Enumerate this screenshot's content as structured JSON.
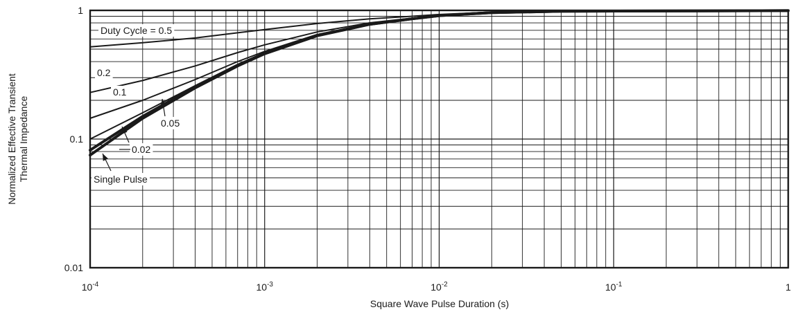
{
  "chart_data": {
    "type": "line",
    "title": "",
    "xlabel": "Square Wave Pulse Duration (s)",
    "ylabel": [
      "Normalized Effective Transient",
      "Thermal Impedance"
    ],
    "x_scale": "log",
    "y_scale": "log",
    "xlim": [
      0.0001,
      1
    ],
    "ylim": [
      0.01,
      1
    ],
    "grid": true,
    "x_ticks": [
      {
        "base": "10",
        "exp": "-4",
        "value": 0.0001
      },
      {
        "base": "10",
        "exp": "-3",
        "value": 0.001
      },
      {
        "base": "10",
        "exp": "-2",
        "value": 0.01
      },
      {
        "base": "10",
        "exp": "-1",
        "value": 0.1
      },
      {
        "base": "1",
        "exp": "",
        "value": 1
      }
    ],
    "y_ticks": [
      {
        "label": "0.01",
        "value": 0.01
      },
      {
        "label": "0.1",
        "value": 0.1
      },
      {
        "label": "1",
        "value": 1
      }
    ],
    "series": [
      {
        "name": "Duty Cycle = 0.5",
        "x": [
          0.0001,
          0.0002,
          0.0004,
          0.0007,
          0.001,
          0.002,
          0.004,
          0.007,
          0.01,
          0.02,
          0.05,
          1
        ],
        "y": [
          0.52,
          0.56,
          0.61,
          0.67,
          0.71,
          0.79,
          0.86,
          0.9,
          0.93,
          0.97,
          0.985,
          0.995
        ]
      },
      {
        "name": "0.2",
        "x": [
          0.0001,
          0.0002,
          0.0004,
          0.0007,
          0.001,
          0.002,
          0.004,
          0.007,
          0.01,
          0.02,
          0.05,
          1
        ],
        "y": [
          0.23,
          0.285,
          0.37,
          0.47,
          0.54,
          0.68,
          0.8,
          0.87,
          0.91,
          0.96,
          0.985,
          0.995
        ]
      },
      {
        "name": "0.1",
        "x": [
          0.0001,
          0.0002,
          0.0004,
          0.0007,
          0.001,
          0.002,
          0.004,
          0.007,
          0.01,
          0.02,
          0.05,
          1
        ],
        "y": [
          0.145,
          0.2,
          0.29,
          0.4,
          0.48,
          0.65,
          0.78,
          0.86,
          0.91,
          0.96,
          0.985,
          0.995
        ]
      },
      {
        "name": "0.05",
        "x": [
          0.0001,
          0.0002,
          0.0004,
          0.0007,
          0.001,
          0.002,
          0.004,
          0.007,
          0.01,
          0.02,
          0.05,
          1
        ],
        "y": [
          0.1,
          0.16,
          0.26,
          0.38,
          0.47,
          0.64,
          0.78,
          0.86,
          0.91,
          0.96,
          0.985,
          0.995
        ]
      },
      {
        "name": "0.02",
        "x": [
          0.0001,
          0.0002,
          0.0004,
          0.0007,
          0.001,
          0.002,
          0.004,
          0.007,
          0.01,
          0.02,
          0.05,
          1
        ],
        "y": [
          0.082,
          0.15,
          0.255,
          0.375,
          0.465,
          0.64,
          0.78,
          0.86,
          0.91,
          0.96,
          0.985,
          0.995
        ]
      },
      {
        "name": "Single Pulse",
        "x": [
          0.0001,
          0.0002,
          0.0004,
          0.0007,
          0.001,
          0.002,
          0.004,
          0.007,
          0.01,
          0.02,
          0.05,
          1
        ],
        "y": [
          0.075,
          0.145,
          0.25,
          0.37,
          0.46,
          0.635,
          0.78,
          0.86,
          0.91,
          0.96,
          0.985,
          0.995
        ]
      }
    ]
  }
}
